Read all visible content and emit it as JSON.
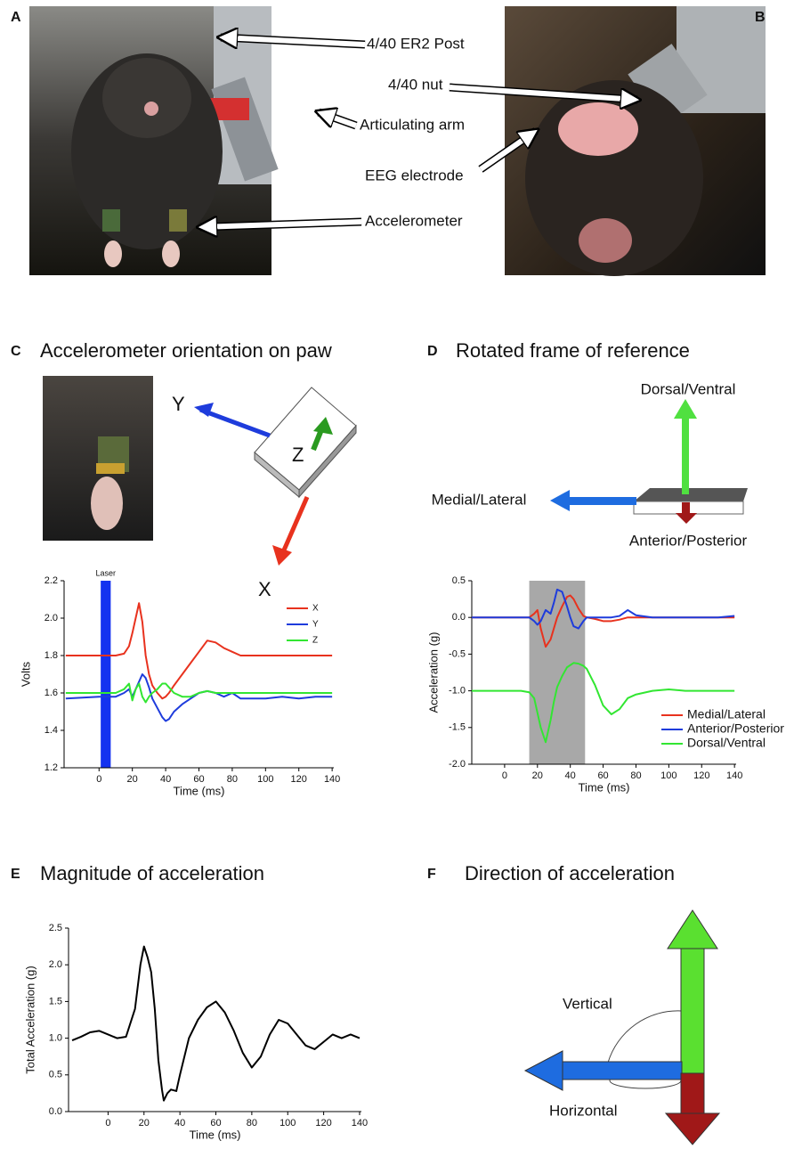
{
  "panel_a": {
    "label": "A",
    "annotations": [
      "4/40 ER2 Post",
      "Articulating arm",
      "Accelerometer"
    ]
  },
  "panel_b": {
    "label": "B",
    "annotations": [
      "4/40 nut",
      "EEG electrode"
    ]
  },
  "panel_c": {
    "label": "C",
    "title": "Accelerometer orientation on paw",
    "axes": [
      "Y",
      "Z",
      "X"
    ]
  },
  "panel_d": {
    "label": "D",
    "title": "Rotated frame of reference",
    "axes": [
      "Dorsal/Ventral",
      "Medial/Lateral",
      "Anterior/Posterior"
    ]
  },
  "panel_e": {
    "label": "E",
    "title": "Magnitude of acceleration"
  },
  "panel_f": {
    "label": "F",
    "title": "Direction of acceleration",
    "angles": [
      "Vertical",
      "Horizontal"
    ]
  },
  "chart_data": [
    {
      "type": "line",
      "xlabel": "Time (ms)",
      "ylabel": "Volts",
      "legend": "upper right",
      "xlim": [
        -21,
        141
      ],
      "ylim": [
        1.2,
        2.2
      ],
      "xticks": [
        0,
        20,
        40,
        60,
        80,
        100,
        120,
        140
      ],
      "yticks": [
        1.2,
        1.4,
        1.6,
        1.8,
        {
          "value": 2,
          "label": "2.0"
        },
        2.2
      ],
      "band": {
        "label": "Laser",
        "x": [
          1,
          7
        ],
        "color": "#1432f0"
      },
      "x": [
        -20,
        0,
        10,
        15,
        18,
        20,
        22,
        24,
        26,
        28,
        30,
        32,
        35,
        38,
        40,
        42,
        45,
        50,
        55,
        60,
        65,
        70,
        75,
        80,
        85,
        90,
        100,
        110,
        120,
        130,
        140
      ],
      "series": [
        {
          "name": "X",
          "color": "#e8321e",
          "values": [
            1.8,
            1.8,
            1.8,
            1.81,
            1.85,
            1.92,
            2.0,
            2.08,
            1.98,
            1.8,
            1.7,
            1.64,
            1.6,
            1.57,
            1.58,
            1.6,
            1.64,
            1.7,
            1.76,
            1.82,
            1.88,
            1.87,
            1.84,
            1.82,
            1.8,
            1.8,
            1.8,
            1.8,
            1.8,
            1.8,
            1.8
          ]
        },
        {
          "name": "Y",
          "color": "#1e3cdc",
          "values": [
            1.57,
            1.58,
            1.58,
            1.6,
            1.62,
            1.58,
            1.62,
            1.66,
            1.7,
            1.68,
            1.63,
            1.57,
            1.52,
            1.47,
            1.45,
            1.46,
            1.5,
            1.54,
            1.57,
            1.6,
            1.61,
            1.6,
            1.58,
            1.6,
            1.57,
            1.57,
            1.57,
            1.58,
            1.57,
            1.58,
            1.58
          ]
        },
        {
          "name": "Z",
          "color": "#32e632",
          "values": [
            1.6,
            1.6,
            1.6,
            1.62,
            1.65,
            1.56,
            1.62,
            1.65,
            1.58,
            1.55,
            1.58,
            1.6,
            1.62,
            1.65,
            1.65,
            1.63,
            1.6,
            1.58,
            1.58,
            1.6,
            1.61,
            1.6,
            1.6,
            1.6,
            1.6,
            1.6,
            1.6,
            1.6,
            1.6,
            1.6,
            1.6
          ]
        }
      ]
    },
    {
      "type": "line",
      "xlabel": "Time (ms)",
      "ylabel": "Acceleration (g)",
      "legend": "lower right",
      "xlim": [
        -20,
        141
      ],
      "ylim": [
        -2,
        0.5
      ],
      "xticks": [
        0,
        20,
        40,
        60,
        80,
        100,
        120,
        140
      ],
      "yticks": [
        {
          "value": -2,
          "label": "-2.0"
        },
        -1.5,
        {
          "value": -1,
          "label": "-1.0"
        },
        -0.5,
        {
          "value": 0,
          "label": "0.0"
        },
        0.5
      ],
      "band": {
        "x": [
          15,
          49
        ],
        "color": "#a8a8a8"
      },
      "x": [
        -20,
        0,
        10,
        15,
        18,
        20,
        22,
        25,
        28,
        30,
        32,
        35,
        38,
        40,
        42,
        45,
        48,
        50,
        55,
        60,
        65,
        70,
        75,
        80,
        90,
        100,
        110,
        120,
        130,
        140
      ],
      "series": [
        {
          "name": "Medial/Lateral",
          "color": "#e8321e",
          "values": [
            0,
            0,
            0,
            0,
            0.05,
            0.1,
            -0.15,
            -0.4,
            -0.3,
            -0.15,
            0,
            0.15,
            0.28,
            0.3,
            0.25,
            0.12,
            0.02,
            0,
            -0.02,
            -0.05,
            -0.05,
            -0.03,
            0,
            0,
            0,
            0,
            0,
            0,
            0,
            0
          ]
        },
        {
          "name": "Anterior/Posterior",
          "color": "#1e3cdc",
          "values": [
            0,
            0,
            0,
            0,
            -0.05,
            -0.1,
            -0.05,
            0.1,
            0.05,
            0.2,
            0.38,
            0.35,
            0.15,
            0,
            -0.12,
            -0.15,
            -0.05,
            0,
            0,
            0,
            0,
            0.02,
            0.1,
            0.03,
            0,
            0,
            0,
            0,
            0,
            0.02
          ]
        },
        {
          "name": "Dorsal/Ventral",
          "color": "#32e632",
          "values": [
            -1,
            -1,
            -1,
            -1.02,
            -1.1,
            -1.3,
            -1.5,
            -1.7,
            -1.4,
            -1.15,
            -0.95,
            -0.8,
            -0.68,
            -0.65,
            -0.62,
            -0.63,
            -0.66,
            -0.7,
            -0.92,
            -1.2,
            -1.32,
            -1.25,
            -1.1,
            -1.05,
            -1,
            -0.98,
            -1,
            -1,
            -1,
            -1
          ]
        }
      ]
    },
    {
      "type": "line",
      "xlabel": "Time (ms)",
      "ylabel": "Total Acceleration (g)",
      "xlim": [
        -22,
        141
      ],
      "ylim": [
        0,
        2.5
      ],
      "xticks": [
        0,
        20,
        40,
        60,
        80,
        100,
        120,
        140
      ],
      "yticks": [
        {
          "value": 0,
          "label": "0.0"
        },
        0.5,
        {
          "value": 1,
          "label": "1.0"
        },
        1.5,
        {
          "value": 2,
          "label": "2.0"
        },
        2.5
      ],
      "x": [
        -20,
        -15,
        -10,
        -5,
        0,
        5,
        10,
        15,
        18,
        20,
        22,
        24,
        26,
        28,
        30,
        31,
        33,
        35,
        38,
        40,
        45,
        50,
        55,
        60,
        65,
        70,
        75,
        80,
        85,
        90,
        95,
        100,
        105,
        110,
        115,
        120,
        125,
        130,
        135,
        140
      ],
      "series": [
        {
          "color": "#000000",
          "values": [
            0.97,
            1.02,
            1.08,
            1.1,
            1.05,
            1.0,
            1.02,
            1.4,
            2.0,
            2.25,
            2.1,
            1.9,
            1.4,
            0.7,
            0.3,
            0.15,
            0.25,
            0.3,
            0.28,
            0.5,
            1.0,
            1.25,
            1.42,
            1.5,
            1.35,
            1.1,
            0.8,
            0.6,
            0.75,
            1.05,
            1.25,
            1.2,
            1.05,
            0.9,
            0.85,
            0.95,
            1.05,
            1.0,
            1.05,
            1.0
          ]
        }
      ]
    }
  ]
}
